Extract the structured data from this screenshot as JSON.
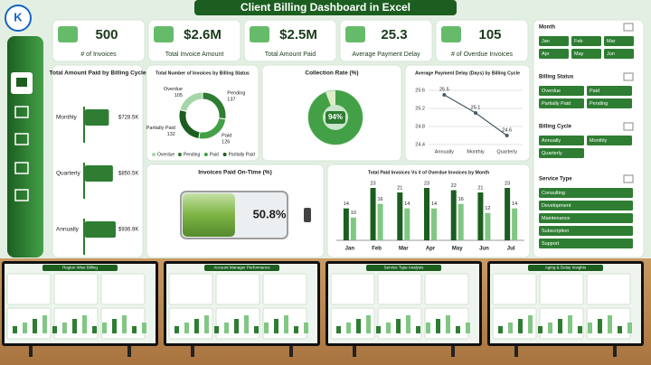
{
  "header": {
    "title": "Client Billing Dashboard in Excel"
  },
  "kpis": [
    {
      "value": "500",
      "label": "# of Invoices"
    },
    {
      "value": "$2.6M",
      "label": "Total Invoice Amount"
    },
    {
      "value": "$2.5M",
      "label": "Total Amount Paid"
    },
    {
      "value": "25.3",
      "label": "Average Payment Delay"
    },
    {
      "value": "105",
      "label": "# of Overdue Invoices"
    }
  ],
  "chart_data": [
    {
      "type": "hbar",
      "title": "Total Amount Paid by Billing Cycle",
      "categories": [
        "Monthly",
        "Quarterly",
        "Annually"
      ],
      "values": [
        728.5,
        850.5,
        936.9
      ],
      "value_labels": [
        "$728.5K",
        "$850.5K",
        "$936.9K"
      ],
      "color": "#2e7d32"
    },
    {
      "type": "donut",
      "title": "Total Number of Invoices by Billing Status",
      "categories": [
        "Overdue",
        "Pending",
        "Paid",
        "Partially Paid"
      ],
      "values": [
        105,
        137,
        126,
        132
      ],
      "colors": [
        "#a5d6a7",
        "#2e7d32",
        "#43a047",
        "#1b5e20"
      ],
      "legend": "bottom"
    },
    {
      "type": "gauge",
      "title": "Collection Rate (%)",
      "values": [
        94
      ],
      "value_labels": [
        "94%"
      ],
      "color": "#43a047"
    },
    {
      "type": "line",
      "title": "Average Payment Delay (Days) by Billing Cycle",
      "categories": [
        "Annually",
        "Monthly",
        "Quarterly"
      ],
      "series": [
        {
          "color": "#455a64",
          "values": [
            25.5,
            25.1,
            24.6
          ]
        }
      ],
      "ylim": [
        24.4,
        25.6
      ],
      "yticks": [
        24.4,
        24.8,
        25.2,
        25.6
      ],
      "grid": true
    },
    {
      "type": "battery",
      "title": "Invoices Paid On-Time (%)",
      "values": [
        50.8
      ],
      "value_labels": [
        "50.8%"
      ],
      "color": "#7cb342"
    },
    {
      "type": "bar",
      "title": "Total Paid Invoices Vs # of Overdue Invoices by Month",
      "categories": [
        "Jan",
        "Feb",
        "Mar",
        "Apr",
        "May",
        "Jun",
        "Jul"
      ],
      "series": [
        {
          "color": "#1b5e20",
          "values": [
            14,
            23,
            21,
            23,
            22,
            21,
            23
          ]
        },
        {
          "color": "#81c784",
          "values": [
            10,
            16,
            14,
            14,
            16,
            12,
            14
          ]
        }
      ]
    }
  ],
  "slicers": [
    {
      "title": "Month",
      "items": [
        "Jan",
        "Feb",
        "Mar",
        "Apr",
        "May",
        "Jun"
      ]
    },
    {
      "title": "Billing Status",
      "items": [
        "Overdue",
        "Paid",
        "Partially Paid",
        "Pending"
      ]
    },
    {
      "title": "Billing Cycle",
      "items": [
        "Annually",
        "Monthly",
        "Quarterly"
      ]
    },
    {
      "title": "Service Type",
      "items": [
        "Consulting",
        "Development",
        "Maintenance",
        "Subscription",
        "Support"
      ]
    }
  ],
  "thumbnails": [
    {
      "title": "Region Wise Billing"
    },
    {
      "title": "Account Manager Performance"
    },
    {
      "title": "Service Type Analysis"
    },
    {
      "title": "Aging & Delay Insights"
    }
  ]
}
